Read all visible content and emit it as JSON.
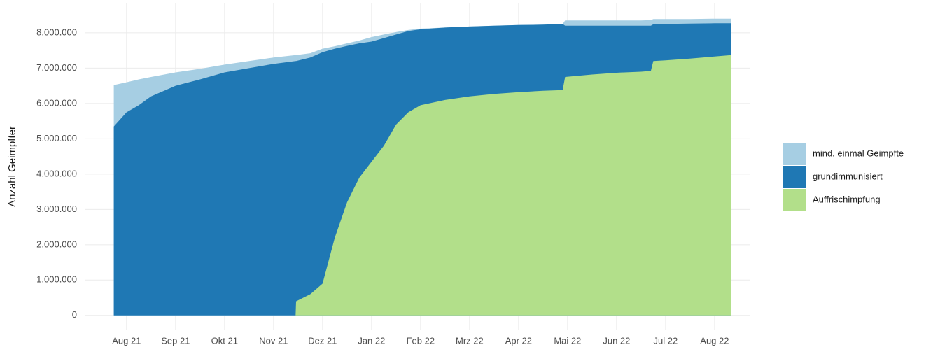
{
  "chart_data": {
    "type": "area",
    "y_label": "Anzahl Geimpfter",
    "x": [
      -0.26,
      0,
      0.25,
      0.5,
      1,
      1.5,
      2,
      2.5,
      3,
      3.45,
      3.46,
      3.75,
      4,
      4.25,
      4.5,
      4.75,
      5,
      5.25,
      5.5,
      5.75,
      6,
      6.5,
      7,
      7.5,
      8,
      8.5,
      8.9,
      8.95,
      9.5,
      10,
      10.5,
      10.7,
      10.75,
      11,
      11.5,
      12,
      12.34
    ],
    "xlim": [
      -0.84,
      12.73
    ],
    "xticks": [
      {
        "value": 0,
        "label": "Aug 21"
      },
      {
        "value": 1,
        "label": "Sep 21"
      },
      {
        "value": 2,
        "label": "Okt 21"
      },
      {
        "value": 3,
        "label": "Nov 21"
      },
      {
        "value": 4,
        "label": "Dez 21"
      },
      {
        "value": 5,
        "label": "Jan 22"
      },
      {
        "value": 6,
        "label": "Feb 22"
      },
      {
        "value": 7,
        "label": "Mrz 22"
      },
      {
        "value": 8,
        "label": "Apr 22"
      },
      {
        "value": 9,
        "label": "Mai 22"
      },
      {
        "value": 10,
        "label": "Jun 22"
      },
      {
        "value": 11,
        "label": "Jul 22"
      },
      {
        "value": 12,
        "label": "Aug 22"
      }
    ],
    "ylim": [
      -420000,
      8830000
    ],
    "yticks": [
      0,
      {
        "value": 1000000,
        "label": "1.000.000"
      },
      {
        "value": 2000000,
        "label": "2.000.000"
      },
      {
        "value": 3000000,
        "label": "3.000.000"
      },
      {
        "value": 4000000,
        "label": "4.000.000"
      },
      {
        "value": 5000000,
        "label": "5.000.000"
      },
      {
        "value": 6000000,
        "label": "6.000.000"
      },
      {
        "value": 7000000,
        "label": "7.000.000"
      },
      {
        "value": 8000000,
        "label": "8.000.000"
      }
    ],
    "grid": true,
    "legend": "right",
    "series": [
      {
        "name": "mind. einmal Geimpfte",
        "color": "#a6cee3",
        "values": [
          6520000,
          6600000,
          6680000,
          6750000,
          6880000,
          6980000,
          7100000,
          7200000,
          7300000,
          7370000,
          7370000,
          7420000,
          7550000,
          7620000,
          7700000,
          7780000,
          7880000,
          7950000,
          8020000,
          8080000,
          8120000,
          8150000,
          8180000,
          8200000,
          8220000,
          8230000,
          8250000,
          8350000,
          8350000,
          8350000,
          8350000,
          8360000,
          8390000,
          8390000,
          8390000,
          8400000,
          8400000
        ]
      },
      {
        "name": "grundimmunisiert",
        "color": "#1f78b4",
        "values": [
          5350000,
          5750000,
          5950000,
          6200000,
          6500000,
          6680000,
          6880000,
          7000000,
          7120000,
          7200000,
          7200000,
          7300000,
          7450000,
          7550000,
          7630000,
          7700000,
          7750000,
          7850000,
          7950000,
          8050000,
          8100000,
          8150000,
          8180000,
          8200000,
          8220000,
          8230000,
          8250000,
          8200000,
          8200000,
          8200000,
          8200000,
          8200000,
          8240000,
          8250000,
          8260000,
          8270000,
          8270000
        ]
      },
      {
        "name": "Auffrischimpfung",
        "color": "#b2df8a",
        "values": [
          0,
          0,
          0,
          0,
          0,
          0,
          0,
          0,
          0,
          0,
          400000,
          600000,
          900000,
          2200000,
          3200000,
          3900000,
          4350000,
          4800000,
          5400000,
          5750000,
          5950000,
          6100000,
          6200000,
          6270000,
          6320000,
          6360000,
          6380000,
          6750000,
          6820000,
          6870000,
          6900000,
          6920000,
          7200000,
          7220000,
          7270000,
          7330000,
          7370000
        ]
      }
    ]
  }
}
